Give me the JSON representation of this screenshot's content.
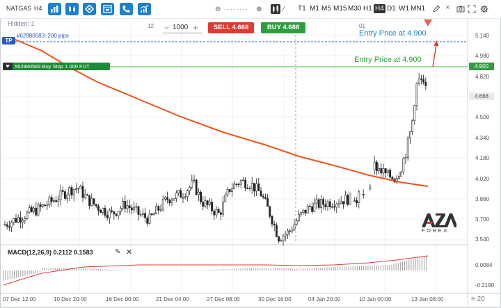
{
  "toolbar": {
    "symbol": "NATGAS",
    "timeframe": "H4",
    "zoom_minus": "⊖",
    "zoom_dots": "········",
    "zoom_plus": "⊕",
    "timeframes": [
      "T1",
      "M1",
      "M5",
      "M15",
      "M30",
      "H1",
      "H4",
      "D1",
      "W1",
      "MN1"
    ],
    "active_timeframe": "H4"
  },
  "chart": {
    "hidden_label": "Hidden: 1",
    "index_left": "12",
    "index_right": "01",
    "tp_label": "TP",
    "tp_note": "#62980583: 200 pips",
    "order_label": "#62980583 Buy Stop 1 000 FUT",
    "entry_blue": "Entry Price at 4.900",
    "entry_green": "Entry Price at 4.900",
    "entry_price_tag": "4.900",
    "current_price_tag": "4.668"
  },
  "trade": {
    "quantity": "1000",
    "minus": "−",
    "plus": "+",
    "sell_label": "SELL 4.668",
    "buy_label": "BUY 4.688"
  },
  "y_axis": [
    "5.140",
    "4.980",
    "4.820",
    "4.668",
    "4.500",
    "4.340",
    "4.180",
    "4.020",
    "3.860",
    "3.700",
    "3.540"
  ],
  "macd": {
    "label": "MACD(12,26,9) 0.2112 0.1583",
    "y_axis": [
      "0.0084",
      "-0.2190"
    ]
  },
  "x_axis": [
    "07 Dec 12:00",
    "10 Dec 20:00",
    "16 Dec 00:00",
    "21 Dec 04:00",
    "27 Dec 08:00",
    "30 Dec 16:00",
    "04 Jan 20:00",
    "10 Jan 00:00",
    "13 Jan 08:00"
  ],
  "footer_menu": "≡ 20",
  "logo": {
    "text": "AZA",
    "sub": "FOREX"
  },
  "colors": {
    "sell": "#e03b32",
    "buy": "#2f9e3e",
    "toolbar_button": "#1d7fd0",
    "ma_line": "#f0531c",
    "tp_line": "#2b59c3",
    "entry_line": "#4caf50",
    "macd_signal": "#e03b32"
  }
}
